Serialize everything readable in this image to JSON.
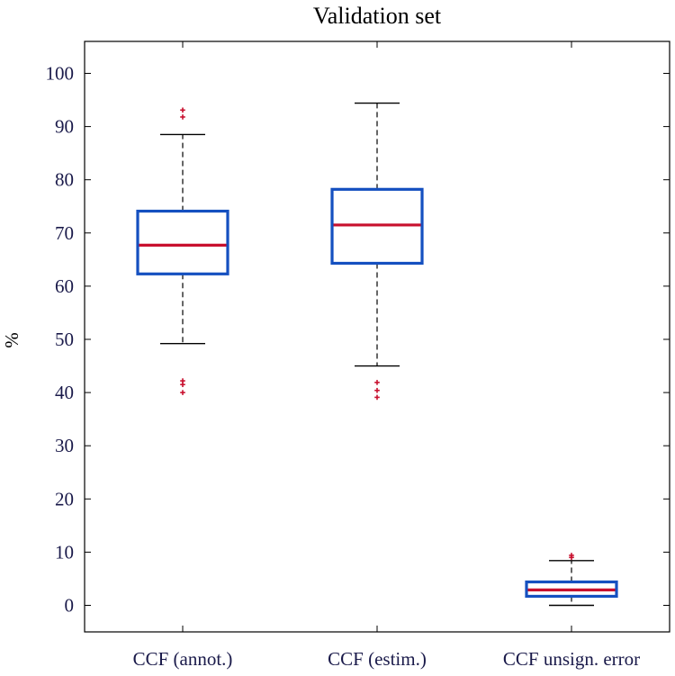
{
  "chart_data": {
    "type": "box",
    "title": "Validation set",
    "xlabel": "",
    "ylabel": "%",
    "ylim": [
      -5,
      105
    ],
    "yticks": [
      0,
      10,
      20,
      30,
      40,
      50,
      60,
      70,
      80,
      90,
      100
    ],
    "grid": false,
    "categories": [
      "CCF (annot.)",
      "CCF (estim.)",
      "CCF unsign. error"
    ],
    "boxes": [
      {
        "name": "CCF (annot.)",
        "whisker_low": 49.2,
        "q1": 62.3,
        "median": 67.7,
        "q3": 74.1,
        "whisker_high": 88.5,
        "outliers": [
          40.0,
          41.5,
          42.2,
          91.8,
          93.1
        ]
      },
      {
        "name": "CCF (estim.)",
        "whisker_low": 45.0,
        "q1": 64.3,
        "median": 71.5,
        "q3": 78.2,
        "whisker_high": 94.4,
        "outliers": [
          39.1,
          40.4,
          41.9
        ]
      },
      {
        "name": "CCF unsign. error",
        "whisker_low": 0.0,
        "q1": 1.7,
        "median": 2.9,
        "q3": 4.4,
        "whisker_high": 8.4,
        "outliers": [
          9.0,
          9.4
        ]
      }
    ],
    "colors": {
      "box": "#1550c0",
      "median": "#c8102e",
      "whisker": "#000000",
      "outlier": "#c8102e",
      "axis": "#000000",
      "text": "#1a1a4a"
    }
  }
}
